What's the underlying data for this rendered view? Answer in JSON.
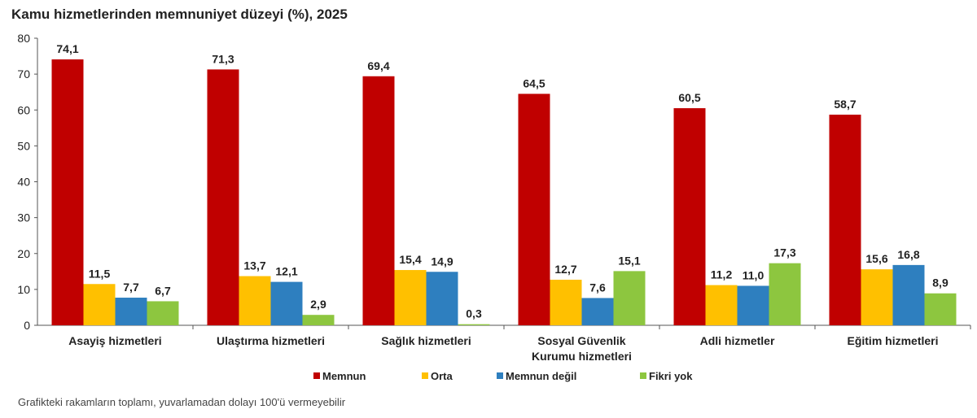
{
  "chart_data": {
    "type": "bar",
    "title": "Kamu hizmetlerinden memnuniyet düzeyi (%), 2025",
    "xlabel": "",
    "ylabel": "",
    "ylim": [
      0,
      80
    ],
    "yticks": [
      0,
      10,
      20,
      30,
      40,
      50,
      60,
      70,
      80
    ],
    "grid": false,
    "legend": "bottom-center",
    "categories": [
      [
        "Asayiş hizmetleri"
      ],
      [
        "Ulaştırma hizmetleri"
      ],
      [
        "Sağlık hizmetleri"
      ],
      [
        "Sosyal Güvenlik",
        "Kurumu hizmetleri"
      ],
      [
        "Adli hizmetler"
      ],
      [
        "Eğitim hizmetleri"
      ]
    ],
    "series": [
      {
        "name": "Memnun",
        "color": "#C00000",
        "values": [
          74.1,
          71.3,
          69.4,
          64.5,
          60.5,
          58.7
        ],
        "labels": [
          "74,1",
          "71,3",
          "69,4",
          "64,5",
          "60,5",
          "58,7"
        ]
      },
      {
        "name": "Orta",
        "color": "#FFC000",
        "values": [
          11.5,
          13.7,
          15.4,
          12.7,
          11.2,
          15.6
        ],
        "labels": [
          "11,5",
          "13,7",
          "15,4",
          "12,7",
          "11,2",
          "15,6"
        ]
      },
      {
        "name": "Memnun değil",
        "color": "#2E7FBF",
        "values": [
          7.7,
          12.1,
          14.9,
          7.6,
          11.0,
          16.8
        ],
        "labels": [
          "7,7",
          "12,1",
          "14,9",
          "7,6",
          "11,0",
          "16,8"
        ]
      },
      {
        "name": "Fikri yok",
        "color": "#8DC63F",
        "values": [
          6.7,
          2.9,
          0.3,
          15.1,
          17.3,
          8.9
        ],
        "labels": [
          "6,7",
          "2,9",
          "0,3",
          "15,1",
          "17,3",
          "8,9"
        ]
      }
    ],
    "footnote": "Grafikteki rakamların toplamı, yuvarlamadan dolayı 100'ü vermeyebilir"
  }
}
